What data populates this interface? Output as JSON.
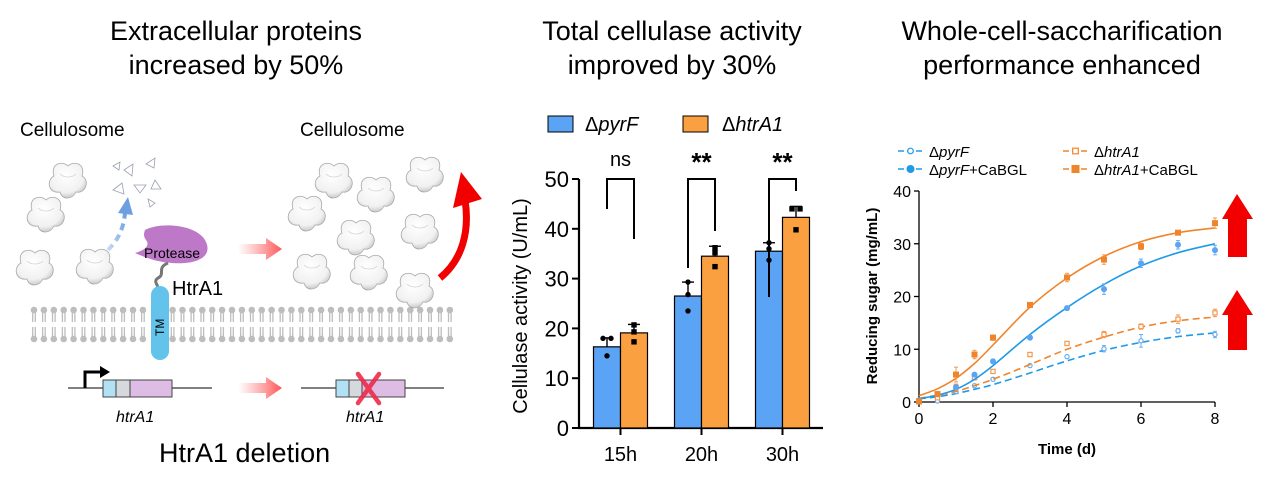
{
  "titles": {
    "left": [
      "Extracellular proteins",
      "increased by 50%"
    ],
    "middle": [
      "Total cellulase activity",
      "improved by 30%"
    ],
    "right": [
      "Whole-cell-saccharification",
      "performance enhanced"
    ]
  },
  "schematic": {
    "label_left": "Cellulosome",
    "label_right": "Cellulosome",
    "protease_label": "Protease",
    "htra1_label": "HtrA1",
    "tm_label": "TM",
    "gene_left": "htrA1",
    "gene_right": "htrA1",
    "footer": "HtrA1 deletion"
  },
  "colors": {
    "blue": "#5BA3F5",
    "orange": "#FBA040",
    "line_blue": "#1E9BE8",
    "line_orange": "#F0842A",
    "red_arrow": "#F20000",
    "protease": "#BD78C8",
    "tm": "#64C3EA",
    "membrane": "#BDBDBD"
  },
  "chart_data": [
    {
      "type": "bar",
      "title": "Total cellulase activity improved by 30%",
      "xlabel": "",
      "ylabel": "Cellulase activity (U/mL)",
      "ylim": [
        0,
        50
      ],
      "yticks": [
        0,
        10,
        20,
        30,
        40,
        50
      ],
      "categories": [
        "15h",
        "20h",
        "30h"
      ],
      "legend_position": "top",
      "series": [
        {
          "name": "ΔpyrF",
          "prefix": "Δ",
          "name_italic": "pyrF",
          "color": "#5BA3F5",
          "marker": "circle",
          "values": [
            16.3,
            26.5,
            35.5
          ],
          "errors": [
            1.8,
            2.8,
            1.7
          ],
          "points": [
            [
              18,
              18,
              14.5
            ],
            [
              29.3,
              26.8,
              23.5
            ],
            [
              37.2,
              36.0,
              33.7
            ]
          ]
        },
        {
          "name": "ΔhtrA1",
          "prefix": "Δ",
          "name_italic": "htrA1",
          "color": "#FBA040",
          "marker": "square",
          "values": [
            19.1,
            34.5,
            42.3
          ],
          "errors": [
            1.7,
            2.0,
            2.2
          ],
          "points": [
            [
              20.7,
              19.3,
              17.3
            ],
            [
              36.2,
              35.2,
              32.4
            ],
            [
              44.0,
              44.0,
              39.8
            ]
          ]
        }
      ],
      "significance": [
        {
          "category": "15h",
          "label": "ns"
        },
        {
          "category": "20h",
          "label": "**"
        },
        {
          "category": "30h",
          "label": "**"
        }
      ]
    },
    {
      "type": "line",
      "title": "Whole-cell-saccharification performance enhanced",
      "xlabel": "Time (d)",
      "ylabel": "Reducing sugar (mg/mL)",
      "xlim": [
        0,
        8
      ],
      "ylim": [
        0,
        40
      ],
      "xticks": [
        0,
        2,
        4,
        6,
        8
      ],
      "yticks": [
        0,
        10,
        20,
        30,
        40
      ],
      "legend_position": "top",
      "x": [
        0,
        0.5,
        1,
        1.5,
        2,
        3,
        4,
        5,
        6,
        7,
        8
      ],
      "series": [
        {
          "name": "ΔpyrF",
          "prefix": "Δ",
          "name_italic": "pyrF",
          "suffix": "",
          "color": "#1E9BE8",
          "marker": "open-circle",
          "line": "dashed",
          "values": [
            0.3,
            0.2,
            2.0,
            3.1,
            4.3,
            6.9,
            8.6,
            10.1,
            11.6,
            13.5,
            12.8
          ],
          "errors": [
            0.2,
            0.2,
            0.3,
            0.3,
            0.3,
            0.3,
            0.3,
            0.6,
            1.2,
            0.4,
            0.6
          ],
          "fit": [
            0.6,
            1.0,
            1.6,
            2.4,
            3.3,
            5.5,
            7.8,
            9.8,
            11.3,
            12.4,
            13.1
          ]
        },
        {
          "name": "ΔhtrA1",
          "prefix": "Δ",
          "name_italic": "htrA1",
          "suffix": "",
          "color": "#F0842A",
          "marker": "open-square",
          "line": "dashed",
          "values": [
            0.2,
            0.8,
            2.8,
            4.6,
            5.8,
            9.0,
            11.1,
            12.8,
            14.3,
            15.7,
            16.9
          ],
          "errors": [
            0.2,
            0.3,
            0.6,
            0.4,
            0.3,
            0.4,
            0.3,
            0.6,
            0.5,
            0.8,
            0.7
          ],
          "fit": [
            0.7,
            1.3,
            2.0,
            3.1,
            4.3,
            7.1,
            10.0,
            12.3,
            14.2,
            15.4,
            16.1
          ]
        },
        {
          "name": "ΔpyrF+CaBGL",
          "prefix": "Δ",
          "name_italic": "pyrF",
          "suffix": "+CaBGL",
          "color": "#1E9BE8",
          "marker": "filled-circle",
          "line": "solid",
          "values": [
            0.3,
            1.5,
            2.8,
            5.2,
            7.7,
            12.2,
            17.8,
            21.4,
            26.3,
            29.8,
            28.8
          ],
          "errors": [
            0.2,
            0.3,
            0.3,
            0.3,
            0.4,
            0.4,
            0.4,
            1.0,
            0.8,
            0.8,
            0.9
          ],
          "fit": [
            0.6,
            1.3,
            2.4,
            4.3,
            6.9,
            12.8,
            17.9,
            22.3,
            25.8,
            28.3,
            30.0
          ]
        },
        {
          "name": "ΔhtrA1+CaBGL",
          "prefix": "Δ",
          "name_italic": "htrA1",
          "suffix": "+CaBGL",
          "color": "#F0842A",
          "marker": "filled-square",
          "line": "solid",
          "values": [
            0.1,
            1.5,
            5.2,
            9.0,
            12.2,
            18.4,
            23.6,
            27.0,
            29.5,
            32.1,
            33.9
          ],
          "errors": [
            0.2,
            0.3,
            1.4,
            0.8,
            0.5,
            0.4,
            0.8,
            0.9,
            0.6,
            0.4,
            1.0
          ],
          "fit": [
            1.2,
            2.5,
            4.5,
            7.3,
            10.8,
            18.0,
            23.5,
            27.6,
            30.4,
            32.1,
            33.0
          ]
        }
      ]
    }
  ]
}
